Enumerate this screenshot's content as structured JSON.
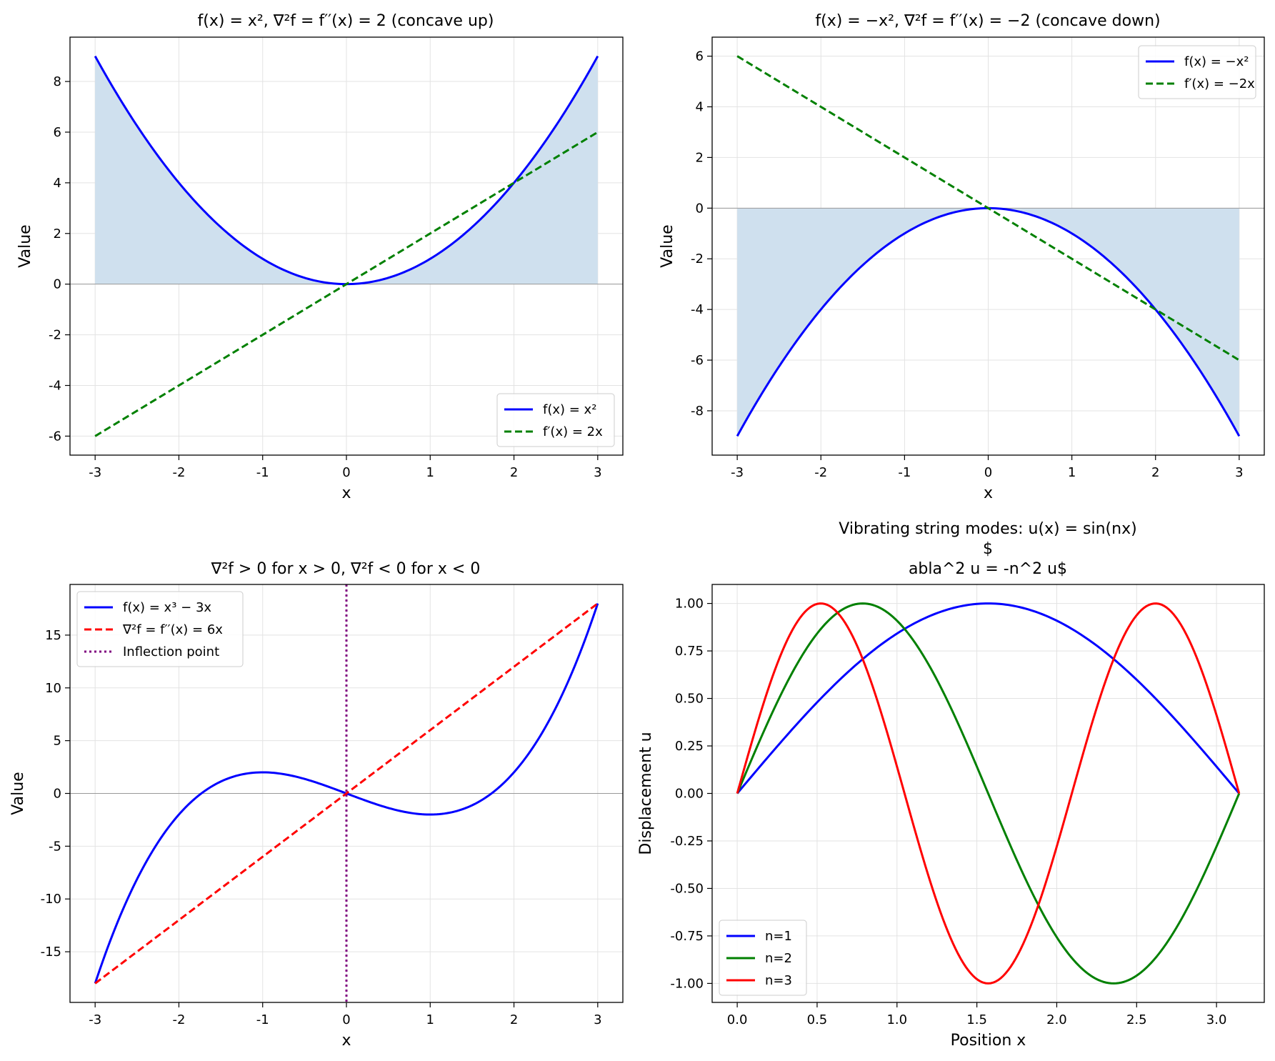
{
  "figure_title": "",
  "chart_data": [
    {
      "id": "p1",
      "type": "line",
      "title": "f(x) = x², ∇²f = f′′(x) = 2 (concave up)",
      "xlabel": "x",
      "ylabel": "Value",
      "xlim": [
        -3.3,
        3.3
      ],
      "ylim": [
        -6.75,
        9.75
      ],
      "xticks": [
        -3,
        -2,
        -1,
        0,
        1,
        2,
        3
      ],
      "xtick_labels": [
        "-3",
        "-2",
        "-1",
        "0",
        "1",
        "2",
        "3"
      ],
      "yticks": [
        -6,
        -4,
        -2,
        0,
        2,
        4,
        6,
        8
      ],
      "ytick_labels": [
        "-6",
        "-4",
        "-2",
        "0",
        "2",
        "4",
        "6",
        "8"
      ],
      "grid": true,
      "zero_line": true,
      "fill_between": {
        "series": "f",
        "to": 0,
        "color": "#cfe0ee"
      },
      "legend_position": "lower-right",
      "series": [
        {
          "key": "f",
          "name": "f(x) = x²",
          "color": "#0000ff",
          "style": "solid",
          "x": [
            -3,
            -2.5,
            -2,
            -1.5,
            -1,
            -0.5,
            0,
            0.5,
            1,
            1.5,
            2,
            2.5,
            3
          ],
          "y": [
            9,
            6.25,
            4,
            2.25,
            1,
            0.25,
            0,
            0.25,
            1,
            2.25,
            4,
            6.25,
            9
          ]
        },
        {
          "key": "d",
          "name": "f′(x) = 2x",
          "color": "#008000",
          "style": "dashed",
          "x": [
            -3,
            3
          ],
          "y": [
            -6,
            6
          ]
        }
      ]
    },
    {
      "id": "p2",
      "type": "line",
      "title": "f(x) = −x², ∇²f = f′′(x) = −2 (concave down)",
      "xlabel": "x",
      "ylabel": "Value",
      "xlim": [
        -3.3,
        3.3
      ],
      "ylim": [
        -9.75,
        6.75
      ],
      "xticks": [
        -3,
        -2,
        -1,
        0,
        1,
        2,
        3
      ],
      "xtick_labels": [
        "-3",
        "-2",
        "-1",
        "0",
        "1",
        "2",
        "3"
      ],
      "yticks": [
        -8,
        -6,
        -4,
        -2,
        0,
        2,
        4,
        6
      ],
      "ytick_labels": [
        "-8",
        "-6",
        "-4",
        "-2",
        "0",
        "2",
        "4",
        "6"
      ],
      "grid": true,
      "zero_line": true,
      "fill_between": {
        "series": "f",
        "to": 0,
        "color": "#cfe0ee"
      },
      "legend_position": "upper-right",
      "series": [
        {
          "key": "f",
          "name": "f(x) = −x²",
          "color": "#0000ff",
          "style": "solid",
          "x": [
            -3,
            -2.5,
            -2,
            -1.5,
            -1,
            -0.5,
            0,
            0.5,
            1,
            1.5,
            2,
            2.5,
            3
          ],
          "y": [
            -9,
            -6.25,
            -4,
            -2.25,
            -1,
            -0.25,
            0,
            -0.25,
            -1,
            -2.25,
            -4,
            -6.25,
            -9
          ]
        },
        {
          "key": "d",
          "name": "f′(x) = −2x",
          "color": "#008000",
          "style": "dashed",
          "x": [
            -3,
            3
          ],
          "y": [
            6,
            -6
          ]
        }
      ]
    },
    {
      "id": "p3",
      "type": "line",
      "title": "∇²f > 0 for x > 0, ∇²f < 0 for x < 0",
      "xlabel": "x",
      "ylabel": "Value",
      "xlim": [
        -3.3,
        3.3
      ],
      "ylim": [
        -19.8,
        19.8
      ],
      "xticks": [
        -3,
        -2,
        -1,
        0,
        1,
        2,
        3
      ],
      "xtick_labels": [
        "-3",
        "-2",
        "-1",
        "0",
        "1",
        "2",
        "3"
      ],
      "yticks": [
        -15,
        -10,
        -5,
        0,
        5,
        10,
        15
      ],
      "ytick_labels": [
        "-15",
        "-10",
        "-5",
        "0",
        "5",
        "10",
        "15"
      ],
      "grid": true,
      "zero_line": true,
      "legend_position": "upper-left",
      "series": [
        {
          "key": "f",
          "name": "f(x) = x³ − 3x",
          "color": "#0000ff",
          "style": "solid",
          "x": [
            -3,
            -2.75,
            -2.5,
            -2.25,
            -2,
            -1.75,
            -1.5,
            -1.25,
            -1,
            -0.75,
            -0.5,
            -0.25,
            0,
            0.25,
            0.5,
            0.75,
            1,
            1.25,
            1.5,
            1.75,
            2,
            2.25,
            2.5,
            2.75,
            3
          ],
          "y": [
            -18,
            -12.55,
            -8.13,
            -4.64,
            -2,
            -0.11,
            1.13,
            1.8,
            2,
            1.83,
            1.38,
            0.73,
            0,
            -0.73,
            -1.38,
            -1.83,
            -2,
            -1.8,
            -1.13,
            0.11,
            2,
            4.64,
            8.13,
            12.55,
            18
          ]
        },
        {
          "key": "d2",
          "name": "∇²f = f′′(x) = 6x",
          "color": "#ff0000",
          "style": "dashed",
          "x": [
            -3,
            3
          ],
          "y": [
            -18,
            18
          ]
        },
        {
          "key": "ip",
          "name": "Inflection point",
          "color": "#800080",
          "style": "dotted",
          "vline": 0
        }
      ]
    },
    {
      "id": "p4",
      "type": "line",
      "title_lines": [
        "Vibrating string modes: u(x) = sin(nx)",
        "$",
        "abla^2 u = -n^2 u$"
      ],
      "xlabel": "Position x",
      "ylabel": "Displacement u",
      "xlim": [
        -0.157,
        3.299
      ],
      "ylim": [
        -1.1,
        1.1
      ],
      "xticks": [
        0,
        0.5,
        1,
        1.5,
        2,
        2.5,
        3
      ],
      "xtick_labels": [
        "0.0",
        "0.5",
        "1.0",
        "1.5",
        "2.0",
        "2.5",
        "3.0"
      ],
      "yticks": [
        -1,
        -0.75,
        -0.5,
        -0.25,
        0,
        0.25,
        0.5,
        0.75,
        1
      ],
      "ytick_labels": [
        "-1.00",
        "-0.75",
        "-0.50",
        "-0.25",
        "0.00",
        "0.25",
        "0.50",
        "0.75",
        "1.00"
      ],
      "grid": true,
      "zero_line": false,
      "legend_position": "lower-left",
      "series": [
        {
          "key": "n1",
          "name": "n=1",
          "color": "#0000ff",
          "style": "solid",
          "n": 1,
          "x_range": [
            0,
            3.1416
          ],
          "func": "sin"
        },
        {
          "key": "n2",
          "name": "n=2",
          "color": "#008000",
          "style": "solid",
          "n": 2,
          "x_range": [
            0,
            3.1416
          ],
          "func": "sin"
        },
        {
          "key": "n3",
          "name": "n=3",
          "color": "#ff0000",
          "style": "solid",
          "n": 3,
          "x_range": [
            0,
            3.1416
          ],
          "func": "sin"
        }
      ]
    }
  ]
}
